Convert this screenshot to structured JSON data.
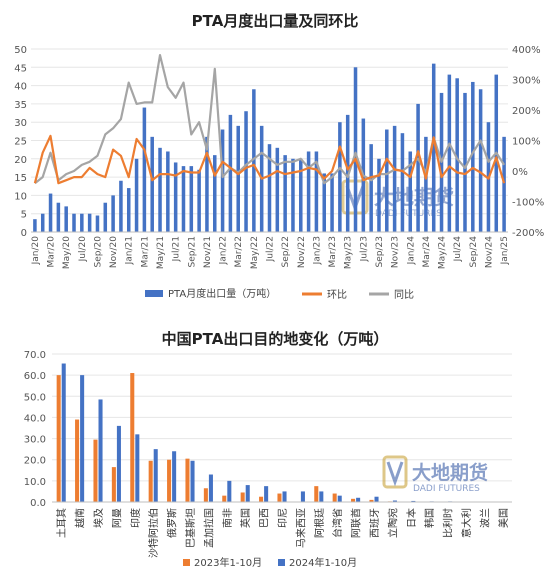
{
  "chart_data": [
    {
      "type": "bar",
      "title": "PTA月度出口量及同环比",
      "categories": [
        "Jan/20",
        "Feb/20",
        "Mar/20",
        "Apr/20",
        "May/20",
        "Jun/20",
        "Jul/20",
        "Aug/20",
        "Sep/20",
        "Oct/20",
        "Nov/20",
        "Dec/20",
        "Jan/21",
        "Feb/21",
        "Mar/21",
        "Apr/21",
        "May/21",
        "Jun/21",
        "Jul/21",
        "Aug/21",
        "Sep/21",
        "Oct/21",
        "Nov/21",
        "Dec/21",
        "Jan/22",
        "Feb/22",
        "Mar/22",
        "Apr/22",
        "May/22",
        "Jun/22",
        "Jul/22",
        "Aug/22",
        "Sep/22",
        "Oct/22",
        "Nov/22",
        "Dec/22",
        "Jan/23",
        "Feb/23",
        "Mar/23",
        "Apr/23",
        "May/23",
        "Jun/23",
        "Jul/23",
        "Aug/23",
        "Sep/23",
        "Oct/23",
        "Nov/23",
        "Dec/23",
        "Jan/24",
        "Feb/24",
        "Mar/24",
        "Apr/24",
        "May/24",
        "Jun/24",
        "Jul/24",
        "Aug/24",
        "Sep/24",
        "Oct/24",
        "Nov/24",
        "Dec/24",
        "Jan/25"
      ],
      "x_tick_labels": [
        "Jan/20",
        "Mar/20",
        "May/20",
        "Jul/20",
        "Sep/20",
        "Nov/20",
        "Jan/21",
        "Mar/21",
        "May/21",
        "Jul/21",
        "Sep/21",
        "Nov/21",
        "Jan/22",
        "Mar/22",
        "May/22",
        "Jul/22",
        "Sep/22",
        "Nov/22",
        "Jan/23",
        "Mar/23",
        "May/23",
        "Jul/23",
        "Sep/23",
        "Nov/23",
        "Jan/24",
        "Mar/24",
        "May/24",
        "Jul/24",
        "Sep/24",
        "Nov/24",
        "Jan/25"
      ],
      "y_left_ticks": [
        "0",
        "5",
        "10",
        "15",
        "20",
        "25",
        "30",
        "35",
        "40",
        "45",
        "50"
      ],
      "y_right_ticks": [
        "-200%",
        "-100%",
        "0%",
        "100%",
        "200%",
        "300%",
        "400%"
      ],
      "ylim_left": [
        0,
        50
      ],
      "ylim_right": [
        -200,
        400
      ],
      "series": [
        {
          "name": "PTA月度出口量（万吨）",
          "type": "bar",
          "axis": "left",
          "color": "#4472C4",
          "values": [
            3.5,
            5,
            10.5,
            8,
            7,
            5,
            5,
            5,
            4.5,
            8,
            10,
            14,
            12,
            20,
            34,
            26,
            23,
            22,
            19,
            18,
            18,
            17,
            26,
            21,
            28,
            32,
            29,
            33,
            39,
            29,
            24,
            23,
            21,
            20,
            20,
            22,
            22,
            16,
            16,
            30,
            32,
            45,
            31,
            24,
            20,
            28,
            29,
            27,
            22,
            35,
            26,
            46,
            38,
            43,
            42,
            38,
            41,
            39,
            30,
            43,
            26
          ]
        },
        {
          "name": "环比",
          "type": "line",
          "axis": "right",
          "color": "#ED7D31",
          "values": [
            -40,
            60,
            115,
            -40,
            -30,
            -20,
            -20,
            10,
            -10,
            -20,
            70,
            50,
            -20,
            105,
            70,
            -30,
            -10,
            -10,
            -15,
            0,
            -5,
            -5,
            60,
            -15,
            30,
            10,
            -10,
            10,
            20,
            -25,
            -15,
            0,
            -10,
            -5,
            0,
            10,
            5,
            -25,
            0,
            80,
            5,
            40,
            -30,
            -20,
            -15,
            40,
            5,
            0,
            -20,
            65,
            -25,
            110,
            -20,
            15,
            -5,
            -10,
            10,
            -5,
            -25,
            45,
            -40
          ]
        },
        {
          "name": "同比",
          "type": "line",
          "axis": "right",
          "color": "#A5A5A5",
          "values": [
            -40,
            -20,
            60,
            -30,
            -10,
            0,
            20,
            30,
            50,
            120,
            140,
            170,
            290,
            220,
            225,
            225,
            380,
            275,
            240,
            290,
            120,
            160,
            70,
            335,
            -20,
            10,
            -5,
            20,
            40,
            60,
            40,
            20,
            30,
            30,
            40,
            10,
            30,
            -40,
            -20,
            10,
            -20,
            60,
            -15,
            -30,
            -10,
            -10,
            5,
            0,
            20,
            40,
            -5,
            110,
            30,
            90,
            40,
            10,
            60,
            100,
            30,
            60,
            20
          ]
        }
      ],
      "legend_position": "bottom",
      "watermark": {
        "name": "大地期货",
        "subtitle": "DADI FUTURES"
      }
    },
    {
      "type": "bar",
      "title": "中国PTA出口目的地变化（万吨）",
      "categories": [
        "土耳其",
        "越南",
        "埃及",
        "阿曼",
        "印度",
        "沙特阿拉伯",
        "俄罗斯",
        "巴基斯坦",
        "孟加拉国",
        "南非",
        "英国",
        "巴西",
        "印尼",
        "马来西亚",
        "阿根廷",
        "台湾省",
        "阿联酋",
        "西班牙",
        "立陶宛",
        "日本",
        "韩国",
        "比利时",
        "意大利",
        "波兰",
        "美国"
      ],
      "yticks": [
        "0.0",
        "10.0",
        "20.0",
        "30.0",
        "40.0",
        "50.0",
        "60.0",
        "70.0"
      ],
      "ylim": [
        0,
        70
      ],
      "series": [
        {
          "name": "2023年1-10月",
          "color": "#ED7D31",
          "values": [
            60,
            39,
            29.5,
            16.5,
            61,
            19.5,
            20,
            20.5,
            6.5,
            3,
            4.5,
            2.5,
            4,
            0,
            7.5,
            4,
            1.5,
            1,
            0.3,
            0,
            0,
            0,
            0,
            0,
            0
          ]
        },
        {
          "name": "2024年1-10月",
          "color": "#4472C4",
          "values": [
            65.5,
            60,
            48.5,
            36,
            32,
            25,
            24,
            19.5,
            13,
            10,
            8,
            7.5,
            5,
            5,
            5,
            3,
            2,
            2.5,
            0.7,
            0.5,
            0.3,
            0.3,
            0.2,
            0.1,
            0.1
          ]
        }
      ],
      "legend_position": "bottom",
      "watermark": {
        "name": "大地期货",
        "subtitle": "DADI FUTURES"
      }
    }
  ]
}
